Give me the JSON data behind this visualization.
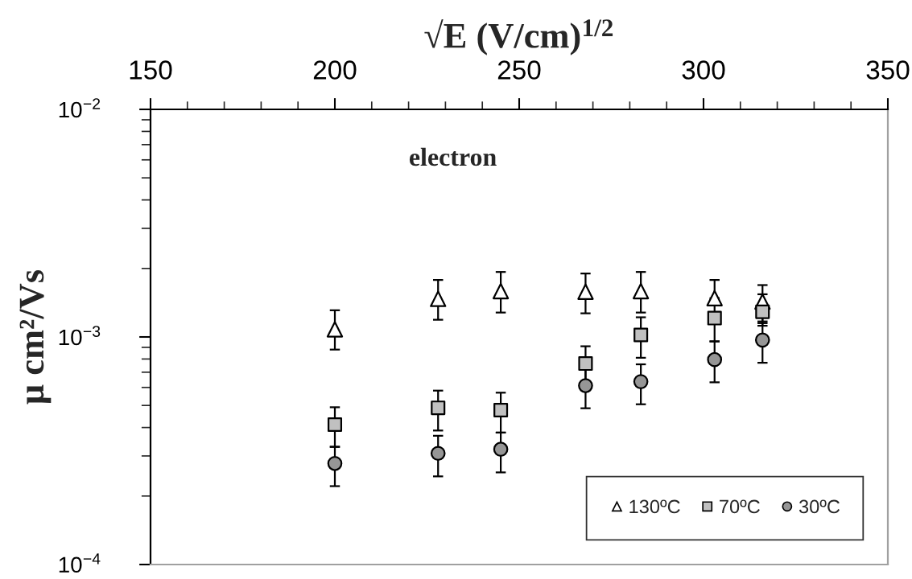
{
  "chart_data": {
    "type": "scatter",
    "xlabel": "√E (V/cm)$^{1/2}$",
    "ylabel": "μ cm²/Vs",
    "annotations": [
      "electron"
    ],
    "x": [
      200,
      228,
      245,
      268,
      283,
      303,
      316
    ],
    "series": [
      {
        "name": "130ºC",
        "color": "#ffffff",
        "marker": "triangle",
        "values": [
          0.00108,
          0.00147,
          0.00159,
          0.00158,
          0.00159,
          0.00148,
          0.00143
        ],
        "errors": [
          [
            0.00088,
            0.00131
          ],
          [
            0.00119,
            0.00178
          ],
          [
            0.00128,
            0.00193
          ],
          [
            0.00127,
            0.0019
          ],
          [
            0.00128,
            0.00193
          ],
          [
            0.00148,
            0.00178
          ],
          [
            0.00117,
            0.00169
          ]
        ]
      },
      {
        "name": "70ºC",
        "color": "#c0c0c0",
        "marker": "square",
        "values": [
          0.000412,
          0.000488,
          0.000477,
          0.000764,
          0.00102,
          0.00121,
          0.00129
        ],
        "errors": [
          [
            0.000329,
            0.000491
          ],
          [
            0.000388,
            0.000581
          ],
          [
            0.00038,
            0.000569
          ],
          [
            0.00063,
            0.00091
          ],
          [
            0.00081,
            0.00122
          ],
          [
            0.000956,
            0.00145
          ],
          [
            0.00112,
            0.00154
          ]
        ]
      },
      {
        "name": "30ºC",
        "color": "#969696",
        "marker": "circle",
        "values": [
          0.000278,
          0.000308,
          0.000321,
          0.000611,
          0.000636,
          0.000795,
          0.000969
        ],
        "errors": [
          [
            0.000221,
            0.000329
          ],
          [
            0.000244,
            0.000368
          ],
          [
            0.000254,
            0.00038
          ],
          [
            0.000486,
            0.00073
          ],
          [
            0.000506,
            0.000758
          ],
          [
            0.000632,
            0.000956
          ],
          [
            0.00077,
            0.00115
          ]
        ]
      }
    ],
    "log": "y",
    "xlim": [
      150,
      350
    ],
    "xticks": [
      150,
      {
        "value": 160,
        "label": null
      },
      {
        "value": 170,
        "label": null
      },
      {
        "value": 180,
        "label": null
      },
      {
        "value": 190,
        "label": null
      },
      200,
      {
        "value": 210,
        "label": null
      },
      {
        "value": 220,
        "label": null
      },
      {
        "value": 230,
        "label": null
      },
      {
        "value": 240,
        "label": null
      },
      250,
      {
        "value": 260,
        "label": null
      },
      {
        "value": 270,
        "label": null
      },
      {
        "value": 280,
        "label": null
      },
      {
        "value": 290,
        "label": null
      },
      300,
      {
        "value": 310,
        "label": null
      },
      {
        "value": 320,
        "label": null
      },
      {
        "value": 330,
        "label": null
      },
      {
        "value": 340,
        "label": null
      },
      350
    ],
    "ylim": [
      0.0001,
      0.01
    ],
    "yticks": [
      {
        "value": 0.0001,
        "label": "10$^{−4}$"
      },
      {
        "value": 0.0002,
        "label": null
      },
      {
        "value": 0.0003,
        "label": null
      },
      {
        "value": 0.0004,
        "label": null
      },
      {
        "value": 0.0005,
        "label": null
      },
      {
        "value": 0.0006,
        "label": null
      },
      {
        "value": 0.0007,
        "label": null
      },
      {
        "value": 0.0008,
        "label": null
      },
      {
        "value": 0.0009,
        "label": null
      },
      {
        "value": 0.001,
        "label": "10$^{−3}$"
      },
      {
        "value": 0.002,
        "label": null
      },
      {
        "value": 0.003,
        "label": null
      },
      {
        "value": 0.004,
        "label": null
      },
      {
        "value": 0.005,
        "label": null
      },
      {
        "value": 0.006,
        "label": null
      },
      {
        "value": 0.007,
        "label": null
      },
      {
        "value": 0.008,
        "label": null
      },
      {
        "value": 0.009,
        "label": null
      },
      {
        "value": 0.01,
        "label": "10$^{−2}$"
      }
    ],
    "legend": "bottom right"
  }
}
